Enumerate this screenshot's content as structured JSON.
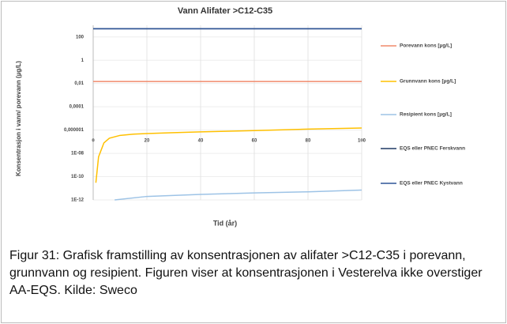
{
  "chart_data": {
    "type": "line",
    "title": "Vann Alifater >C12-C35",
    "xlabel": "Tid (år)",
    "ylabel": "Konsentrasjon i vann/ porevann (µg/L)",
    "xlim": [
      0,
      100
    ],
    "xticks": [
      0,
      20,
      40,
      60,
      80,
      100
    ],
    "ylim": [
      1e-12,
      1000
    ],
    "log_y": true,
    "grid": true,
    "legend": "right",
    "yticks": [
      {
        "value": 1e-12,
        "label": "1E-12"
      },
      {
        "value": 1e-10,
        "label": "1E-10"
      },
      {
        "value": 1e-08,
        "label": "1E-08"
      },
      {
        "value": 1e-06,
        "label": "0,000001"
      },
      {
        "value": 0.0001,
        "label": "0,0001"
      },
      {
        "value": 0.01,
        "label": "0,01"
      },
      1,
      100
    ],
    "series": [
      {
        "name": "Porevann kons [µg/L]",
        "color": "#f08a6c",
        "x": [
          0,
          100
        ],
        "values": [
          0.015,
          0.015
        ]
      },
      {
        "name": "Grunnvann kons [µg/L]",
        "color": "#ffc000",
        "x": [
          1,
          2,
          4,
          6,
          10,
          15,
          20,
          30,
          40,
          60,
          80,
          100
        ],
        "values": [
          3e-11,
          5e-09,
          8e-08,
          2e-07,
          3.5e-07,
          4.5e-07,
          5e-07,
          6e-07,
          7e-07,
          9e-07,
          1.2e-06,
          1.5e-06
        ]
      },
      {
        "name": "Resipient kons [µg/L]",
        "color": "#9dc3e6",
        "x": [
          8,
          20,
          40,
          60,
          80,
          100
        ],
        "values": [
          1e-12,
          2e-12,
          3e-12,
          4e-12,
          5e-12,
          7e-12
        ]
      },
      {
        "name": "EQS eller PNEC Ferskvann",
        "color": "#1f3864",
        "x": [
          0,
          100
        ],
        "values": [
          500,
          500
        ]
      },
      {
        "name": "EQS eller PNEC Kystvann",
        "color": "#2f5597",
        "x": [
          0,
          100
        ],
        "values": [
          500,
          500
        ]
      }
    ]
  },
  "caption": "Figur 31: Grafisk framstilling av konsentrasjonen av alifater >C12-C35 i porevann, grunnvann og resipient. Figuren viser at konsentrasjonen i Vesterelva ikke overstiger AA-EQS. Kilde: Sweco"
}
